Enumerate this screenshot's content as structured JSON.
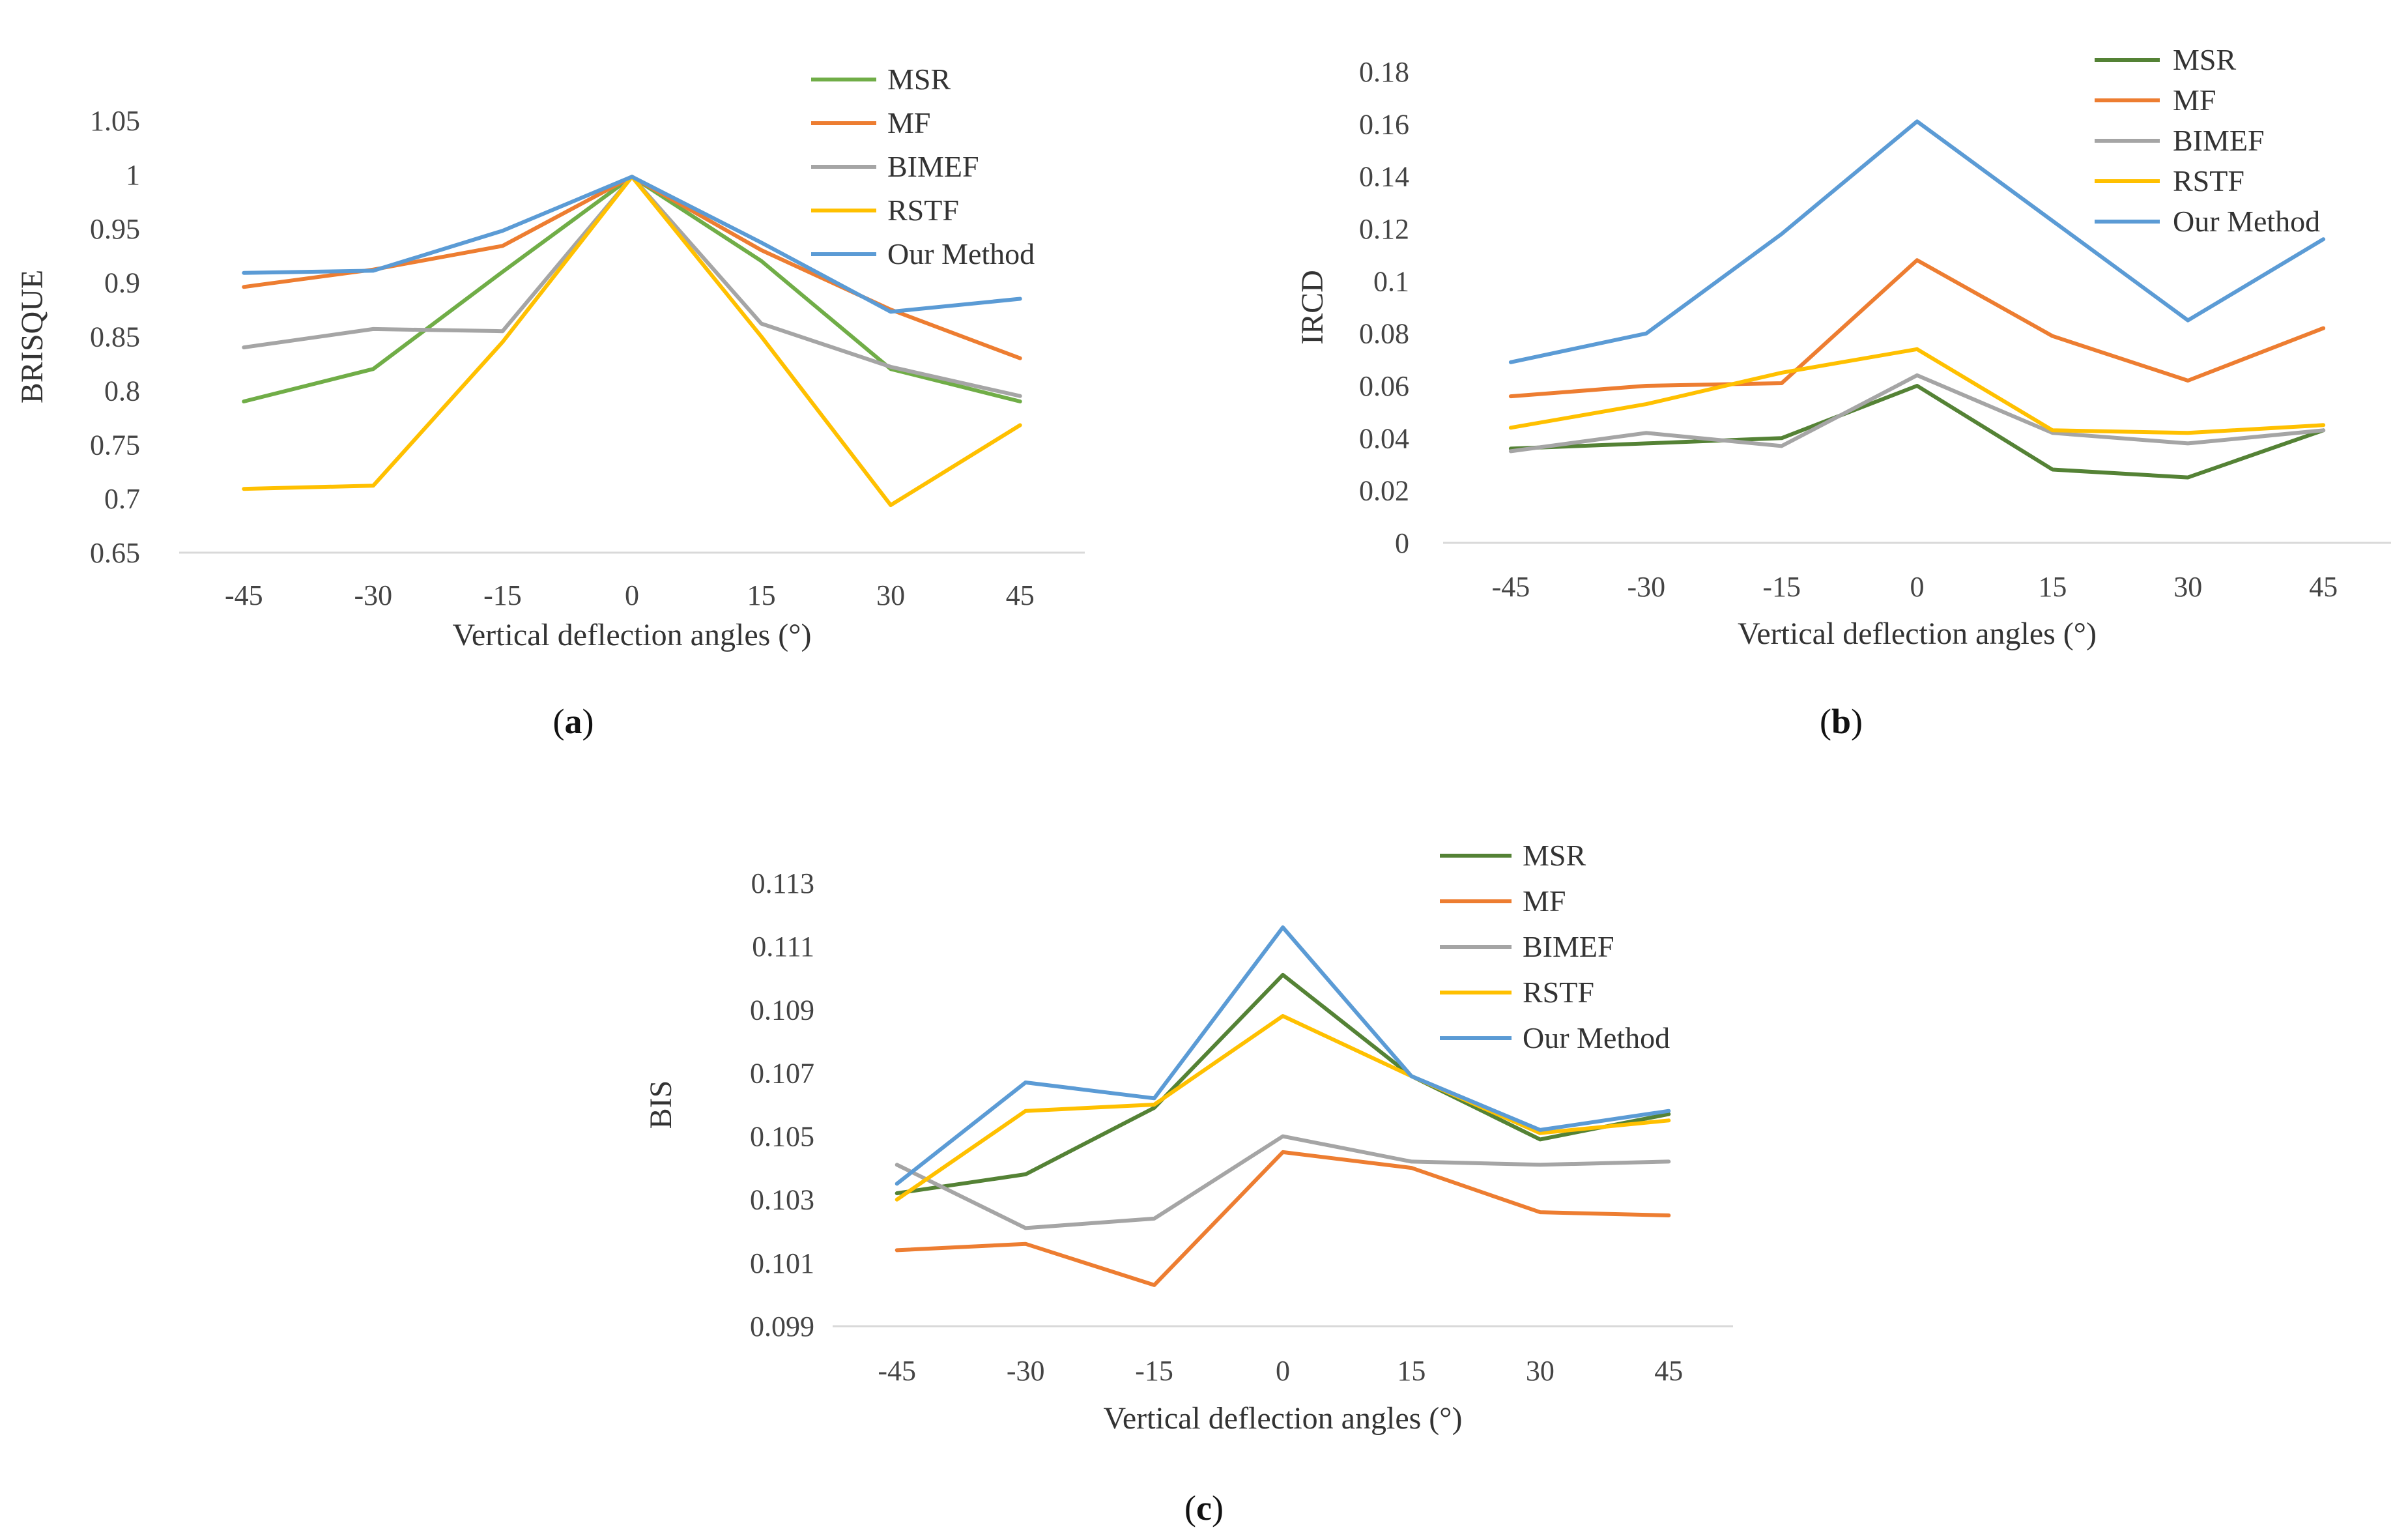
{
  "figure": {
    "captions": [
      {
        "open": "(",
        "letter": "a",
        "close": ")"
      },
      {
        "open": "(",
        "letter": "b",
        "close": ")"
      },
      {
        "open": "(",
        "letter": "c",
        "close": ")"
      }
    ]
  },
  "series_colors": {
    "MSR_a": "#70AD47",
    "MSR": "#548235",
    "MF": "#ED7D31",
    "BIMEF": "#A5A5A5",
    "RSTF": "#FFC000",
    "Our Method": "#5B9BD5"
  },
  "chart_data": [
    {
      "id": "a",
      "type": "line",
      "title": "",
      "xlabel": "Vertical deflection angles (°)",
      "ylabel": "BRISQUE",
      "categories": [
        "-45",
        "-30",
        "-15",
        "0",
        "15",
        "30",
        "45"
      ],
      "ylim": [
        0.65,
        1.05
      ],
      "yticks": [
        "0.65",
        "0.7",
        "0.75",
        "0.8",
        "0.85",
        "0.9",
        "0.95",
        "1",
        "1.05"
      ],
      "legend_position": "top-right",
      "series": [
        {
          "name": "MSR",
          "color": "#70AD47",
          "values": [
            0.79,
            0.82,
            0.91,
            0.998,
            0.92,
            0.82,
            0.79
          ]
        },
        {
          "name": "MF",
          "color": "#ED7D31",
          "values": [
            0.896,
            0.912,
            0.934,
            0.998,
            0.93,
            0.875,
            0.83
          ]
        },
        {
          "name": "BIMEF",
          "color": "#A5A5A5",
          "values": [
            0.84,
            0.857,
            0.855,
            0.998,
            0.862,
            0.822,
            0.795
          ]
        },
        {
          "name": "RSTF",
          "color": "#FFC000",
          "values": [
            0.709,
            0.712,
            0.845,
            0.998,
            0.85,
            0.694,
            0.768
          ]
        },
        {
          "name": "Our Method",
          "color": "#5B9BD5",
          "values": [
            0.909,
            0.911,
            0.948,
            0.998,
            0.937,
            0.873,
            0.885
          ]
        }
      ]
    },
    {
      "id": "b",
      "type": "line",
      "title": "",
      "xlabel": "Vertical deflection angles (°)",
      "ylabel": "IRCD",
      "categories": [
        "-45",
        "-30",
        "-15",
        "0",
        "15",
        "30",
        "45"
      ],
      "ylim": [
        0,
        0.18
      ],
      "yticks": [
        "0",
        "0.02",
        "0.04",
        "0.06",
        "0.08",
        "0.1",
        "0.12",
        "0.14",
        "0.16",
        "0.18"
      ],
      "legend_position": "top-right",
      "series": [
        {
          "name": "MSR",
          "color": "#548235",
          "values": [
            0.036,
            0.038,
            0.04,
            0.06,
            0.028,
            0.025,
            0.043
          ]
        },
        {
          "name": "MF",
          "color": "#ED7D31",
          "values": [
            0.056,
            0.06,
            0.061,
            0.108,
            0.079,
            0.062,
            0.082
          ]
        },
        {
          "name": "BIMEF",
          "color": "#A5A5A5",
          "values": [
            0.035,
            0.042,
            0.037,
            0.064,
            0.042,
            0.038,
            0.043
          ]
        },
        {
          "name": "RSTF",
          "color": "#FFC000",
          "values": [
            0.044,
            0.053,
            0.065,
            0.074,
            0.043,
            0.042,
            0.045
          ]
        },
        {
          "name": "Our Method",
          "color": "#5B9BD5",
          "values": [
            0.069,
            0.08,
            0.118,
            0.161,
            0.123,
            0.085,
            0.116
          ]
        }
      ]
    },
    {
      "id": "c",
      "type": "line",
      "title": "",
      "xlabel": "Vertical deflection angles (°)",
      "ylabel": "BIS",
      "categories": [
        "-45",
        "-30",
        "-15",
        "0",
        "15",
        "30",
        "45"
      ],
      "ylim": [
        0.099,
        0.113
      ],
      "yticks": [
        "0.099",
        "0.101",
        "0.103",
        "0.105",
        "0.107",
        "0.109",
        "0.111",
        "0.113"
      ],
      "legend_position": "top-right",
      "series": [
        {
          "name": "MSR",
          "color": "#548235",
          "values": [
            0.1032,
            0.1038,
            0.1059,
            0.1101,
            0.1069,
            0.1049,
            0.1057
          ]
        },
        {
          "name": "MF",
          "color": "#ED7D31",
          "values": [
            0.1014,
            0.1016,
            0.1003,
            0.1045,
            0.104,
            0.1026,
            0.1025
          ]
        },
        {
          "name": "BIMEF",
          "color": "#A5A5A5",
          "values": [
            0.1041,
            0.1021,
            0.1024,
            0.105,
            0.1042,
            0.1041,
            0.1042
          ]
        },
        {
          "name": "RSTF",
          "color": "#FFC000",
          "values": [
            0.103,
            0.1058,
            0.106,
            0.1088,
            0.1069,
            0.1051,
            0.1055
          ]
        },
        {
          "name": "Our Method",
          "color": "#5B9BD5",
          "values": [
            0.1035,
            0.1067,
            0.1062,
            0.1116,
            0.1069,
            0.1052,
            0.1058
          ]
        }
      ]
    }
  ]
}
